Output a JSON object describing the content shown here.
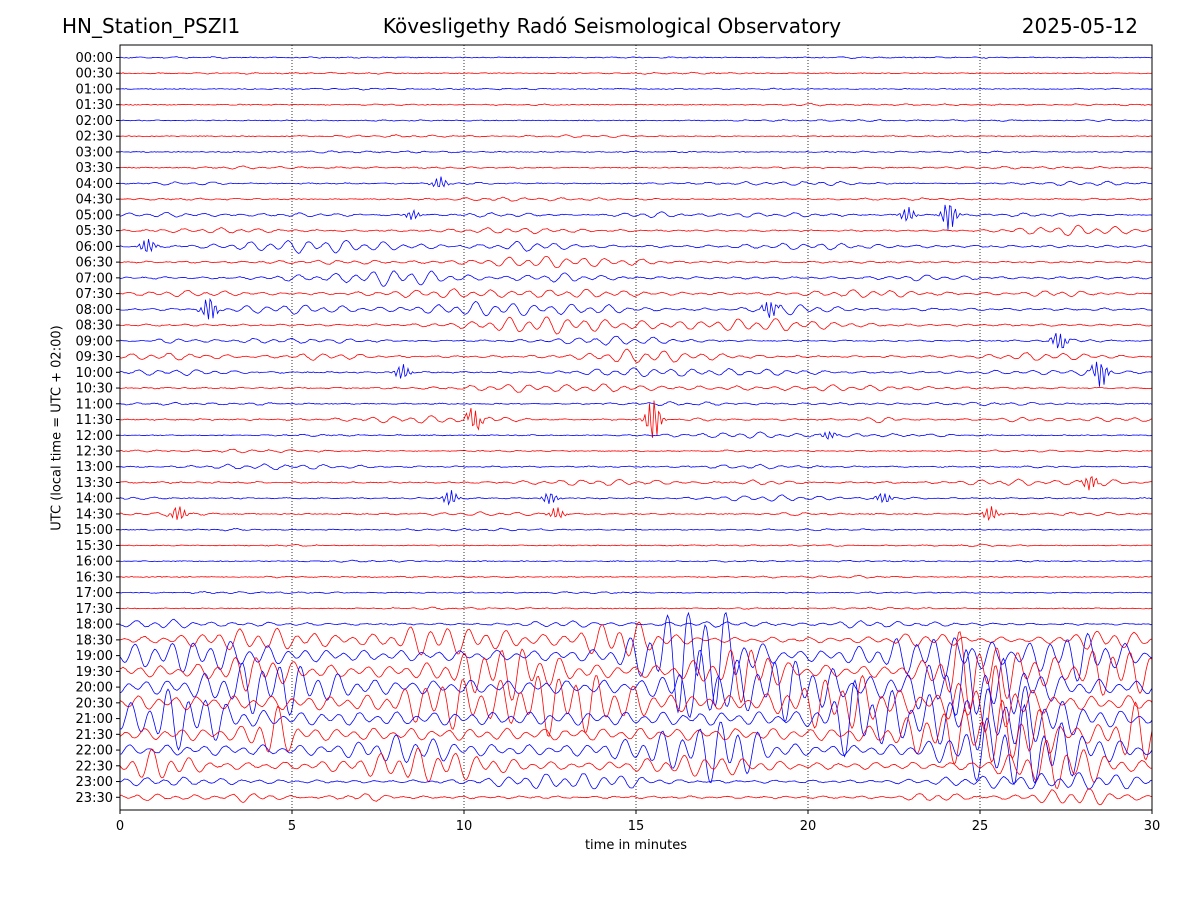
{
  "header": {
    "station": "HN_Station_PSZI1",
    "observatory": "Kövesligethy Radó Seismological Observatory",
    "date": "2025-05-12"
  },
  "chart_data": {
    "type": "line",
    "title": "Kövesligethy Radó Seismological Observatory",
    "xlabel": "time in minutes",
    "ylabel": "UTC (local time = UTC + 02:00)",
    "xlim": [
      0,
      30
    ],
    "x_ticks": [
      0,
      5,
      10,
      15,
      20,
      25,
      30
    ],
    "x_gridlines": [
      5,
      10,
      15,
      20,
      25
    ],
    "grid": "vertical dotted",
    "trace_colors": [
      "#0000ff",
      "#ff0000"
    ],
    "rows": [
      {
        "label": "00:00",
        "activity": 0.02
      },
      {
        "label": "00:30",
        "activity": 0.02
      },
      {
        "label": "01:00",
        "activity": 0.02
      },
      {
        "label": "01:30",
        "activity": 0.02
      },
      {
        "label": "02:00",
        "activity": 0.02
      },
      {
        "label": "02:30",
        "activity": 0.02
      },
      {
        "label": "03:00",
        "activity": 0.02
      },
      {
        "label": "03:30",
        "activity": 0.03
      },
      {
        "label": "04:00",
        "activity": 0.05
      },
      {
        "label": "04:30",
        "activity": 0.03
      },
      {
        "label": "05:00",
        "activity": 0.06
      },
      {
        "label": "05:30",
        "activity": 0.08
      },
      {
        "label": "06:00",
        "activity": 0.14
      },
      {
        "label": "06:30",
        "activity": 0.1
      },
      {
        "label": "07:00",
        "activity": 0.14
      },
      {
        "label": "07:30",
        "activity": 0.13
      },
      {
        "label": "08:00",
        "activity": 0.15
      },
      {
        "label": "08:30",
        "activity": 0.12
      },
      {
        "label": "09:00",
        "activity": 0.08
      },
      {
        "label": "09:30",
        "activity": 0.1
      },
      {
        "label": "10:00",
        "activity": 0.08
      },
      {
        "label": "10:30",
        "activity": 0.07
      },
      {
        "label": "11:00",
        "activity": 0.05
      },
      {
        "label": "11:30",
        "activity": 0.08
      },
      {
        "label": "12:00",
        "activity": 0.04
      },
      {
        "label": "12:30",
        "activity": 0.03
      },
      {
        "label": "13:00",
        "activity": 0.06
      },
      {
        "label": "13:30",
        "activity": 0.08
      },
      {
        "label": "14:00",
        "activity": 0.06
      },
      {
        "label": "14:30",
        "activity": 0.05
      },
      {
        "label": "15:00",
        "activity": 0.03
      },
      {
        "label": "15:30",
        "activity": 0.02
      },
      {
        "label": "16:00",
        "activity": 0.02
      },
      {
        "label": "16:30",
        "activity": 0.02
      },
      {
        "label": "17:00",
        "activity": 0.02
      },
      {
        "label": "17:30",
        "activity": 0.02
      },
      {
        "label": "18:00",
        "activity": 0.1
      },
      {
        "label": "18:30",
        "activity": 0.35
      },
      {
        "label": "19:00",
        "activity": 0.7
      },
      {
        "label": "19:30",
        "activity": 0.8
      },
      {
        "label": "20:00",
        "activity": 0.9
      },
      {
        "label": "20:30",
        "activity": 0.95
      },
      {
        "label": "21:00",
        "activity": 0.9
      },
      {
        "label": "21:30",
        "activity": 0.8
      },
      {
        "label": "22:00",
        "activity": 0.7
      },
      {
        "label": "22:30",
        "activity": 0.45
      },
      {
        "label": "23:00",
        "activity": 0.18
      },
      {
        "label": "23:30",
        "activity": 0.16
      }
    ],
    "events": [
      {
        "row": "05:00",
        "x": 24.1,
        "amp": 1.0
      },
      {
        "row": "05:00",
        "x": 22.9,
        "amp": 0.5
      },
      {
        "row": "05:00",
        "x": 8.5,
        "amp": 0.3
      },
      {
        "row": "06:00",
        "x": 0.8,
        "amp": 0.5
      },
      {
        "row": "08:00",
        "x": 2.6,
        "amp": 0.8
      },
      {
        "row": "08:00",
        "x": 18.9,
        "amp": 0.6
      },
      {
        "row": "09:00",
        "x": 27.3,
        "amp": 0.6
      },
      {
        "row": "10:00",
        "x": 8.2,
        "amp": 0.5
      },
      {
        "row": "10:00",
        "x": 28.5,
        "amp": 0.9
      },
      {
        "row": "11:30",
        "x": 10.3,
        "amp": 0.7
      },
      {
        "row": "11:30",
        "x": 15.5,
        "amp": 1.4
      },
      {
        "row": "12:00",
        "x": 20.6,
        "amp": 0.25
      },
      {
        "row": "13:30",
        "x": 28.2,
        "amp": 0.5
      },
      {
        "row": "14:00",
        "x": 9.6,
        "amp": 0.5
      },
      {
        "row": "14:00",
        "x": 12.5,
        "amp": 0.4
      },
      {
        "row": "14:00",
        "x": 22.2,
        "amp": 0.35
      },
      {
        "row": "14:30",
        "x": 1.7,
        "amp": 0.5
      },
      {
        "row": "14:30",
        "x": 12.7,
        "amp": 0.4
      },
      {
        "row": "14:30",
        "x": 25.3,
        "amp": 0.5
      },
      {
        "row": "04:00",
        "x": 9.3,
        "amp": 0.4
      }
    ]
  }
}
